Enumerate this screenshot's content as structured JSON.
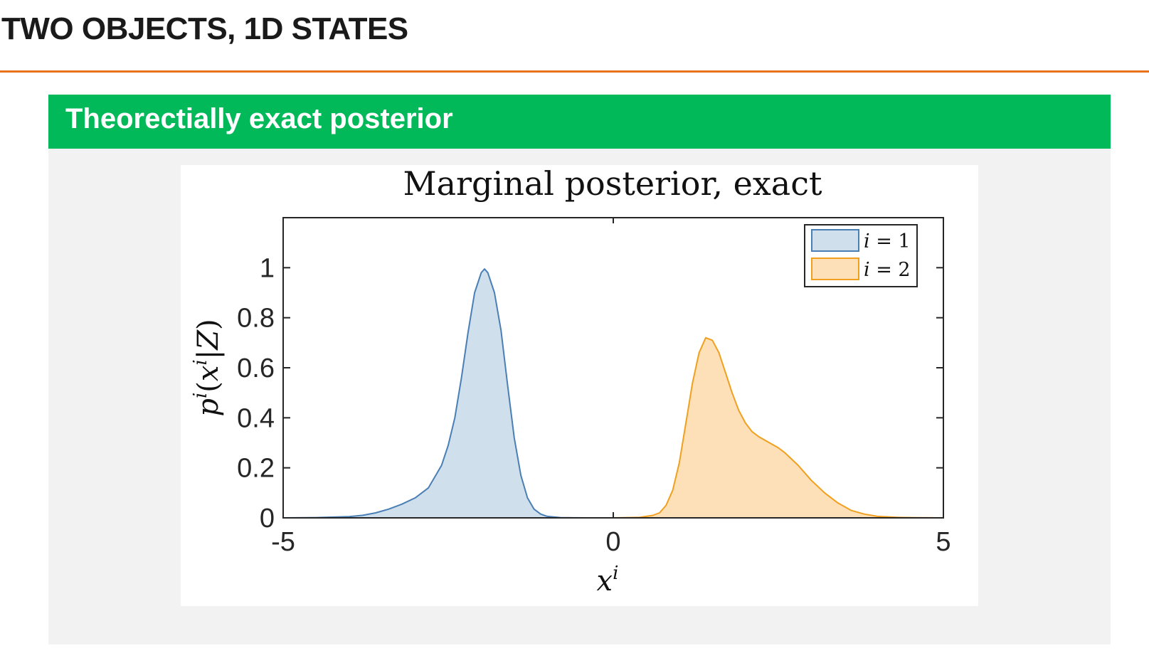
{
  "slide": {
    "title": "TWO OBJECTS, 1D STATES",
    "accent_color": "#e8711c"
  },
  "block": {
    "title": "Theorectially exact posterior",
    "header_color": "#02b95a"
  },
  "chart_data": {
    "type": "area",
    "title": "Marginal posterior, exact",
    "xlabel": "x^i",
    "ylabel": "p^i(x^i|Z)",
    "xlim": [
      -5,
      5
    ],
    "ylim": [
      0,
      1.2
    ],
    "x_ticks": [
      "-5",
      "0",
      "5"
    ],
    "y_ticks": [
      "0",
      "0.2",
      "0.4",
      "0.6",
      "0.8",
      "1"
    ],
    "grid": false,
    "legend_position": "top-right",
    "series": [
      {
        "name": "i = 1",
        "color": "#4a7fb5",
        "fill": "#cfe0ec",
        "x": [
          -5,
          -4.5,
          -4,
          -3.8,
          -3.6,
          -3.4,
          -3.2,
          -3.0,
          -2.8,
          -2.6,
          -2.5,
          -2.4,
          -2.3,
          -2.2,
          -2.1,
          -2.0,
          -1.95,
          -1.9,
          -1.8,
          -1.7,
          -1.6,
          -1.5,
          -1.4,
          -1.3,
          -1.2,
          -1.1,
          -1.0,
          -0.8,
          -0.6,
          -0.4,
          -0.2,
          0,
          1,
          2,
          3,
          4,
          5
        ],
        "y": [
          0,
          0.001,
          0.005,
          0.01,
          0.02,
          0.035,
          0.055,
          0.08,
          0.12,
          0.21,
          0.29,
          0.4,
          0.56,
          0.74,
          0.9,
          0.98,
          0.995,
          0.98,
          0.9,
          0.75,
          0.53,
          0.32,
          0.17,
          0.08,
          0.035,
          0.015,
          0.006,
          0.001,
          0.0003,
          0,
          0,
          0,
          0,
          0,
          0,
          0,
          0
        ]
      },
      {
        "name": "i = 2",
        "color": "#f0a01e",
        "fill": "#fde0b8",
        "x": [
          -5,
          0,
          0.4,
          0.6,
          0.7,
          0.8,
          0.9,
          1.0,
          1.1,
          1.2,
          1.3,
          1.4,
          1.5,
          1.6,
          1.7,
          1.8,
          1.9,
          2.0,
          2.1,
          2.2,
          2.3,
          2.4,
          2.5,
          2.6,
          2.7,
          2.8,
          2.9,
          3.0,
          3.2,
          3.4,
          3.6,
          3.8,
          4.0,
          4.3,
          4.6,
          5.0
        ],
        "y": [
          0,
          0,
          0.002,
          0.01,
          0.02,
          0.05,
          0.11,
          0.22,
          0.38,
          0.54,
          0.66,
          0.72,
          0.71,
          0.66,
          0.58,
          0.5,
          0.43,
          0.38,
          0.345,
          0.325,
          0.31,
          0.295,
          0.28,
          0.26,
          0.235,
          0.21,
          0.18,
          0.15,
          0.1,
          0.06,
          0.03,
          0.015,
          0.006,
          0.002,
          0.0005,
          0
        ]
      }
    ]
  }
}
